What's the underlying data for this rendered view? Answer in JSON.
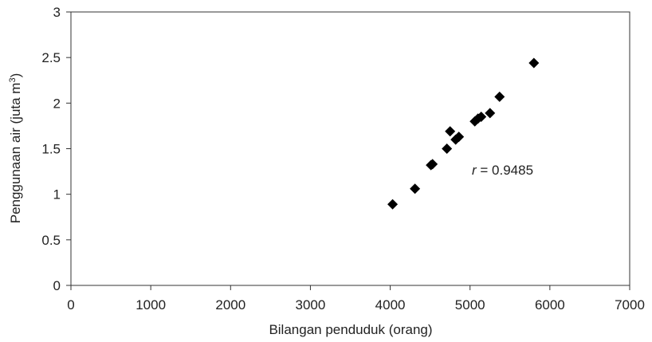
{
  "chart_data": {
    "type": "scatter",
    "xlabel": "Bilangan penduduk (orang)",
    "ylabel_main": "Penggunaan air (juta m",
    "ylabel_sup": "3",
    "ylabel_close": ")",
    "xlim": [
      0,
      7000
    ],
    "ylim": [
      0,
      3
    ],
    "xticks": [
      "0",
      "1000",
      "2000",
      "3000",
      "4000",
      "5000",
      "6000",
      "7000"
    ],
    "yticks": [
      "0",
      "0.5",
      "1",
      "1.5",
      "2",
      "2.5",
      "3"
    ],
    "grid": false,
    "legend": false,
    "marker": "diamond",
    "marker_color": "#000000",
    "annotation": {
      "italic": "r",
      "text": " = 0.9485"
    },
    "points": [
      {
        "x": 4030,
        "y": 0.89
      },
      {
        "x": 4310,
        "y": 1.06
      },
      {
        "x": 4510,
        "y": 1.32
      },
      {
        "x": 4530,
        "y": 1.33
      },
      {
        "x": 4710,
        "y": 1.5
      },
      {
        "x": 4750,
        "y": 1.69
      },
      {
        "x": 4820,
        "y": 1.6
      },
      {
        "x": 4860,
        "y": 1.63
      },
      {
        "x": 5060,
        "y": 1.8
      },
      {
        "x": 5100,
        "y": 1.83
      },
      {
        "x": 5140,
        "y": 1.85
      },
      {
        "x": 5250,
        "y": 1.89
      },
      {
        "x": 5370,
        "y": 2.07
      },
      {
        "x": 5800,
        "y": 2.44
      }
    ]
  }
}
